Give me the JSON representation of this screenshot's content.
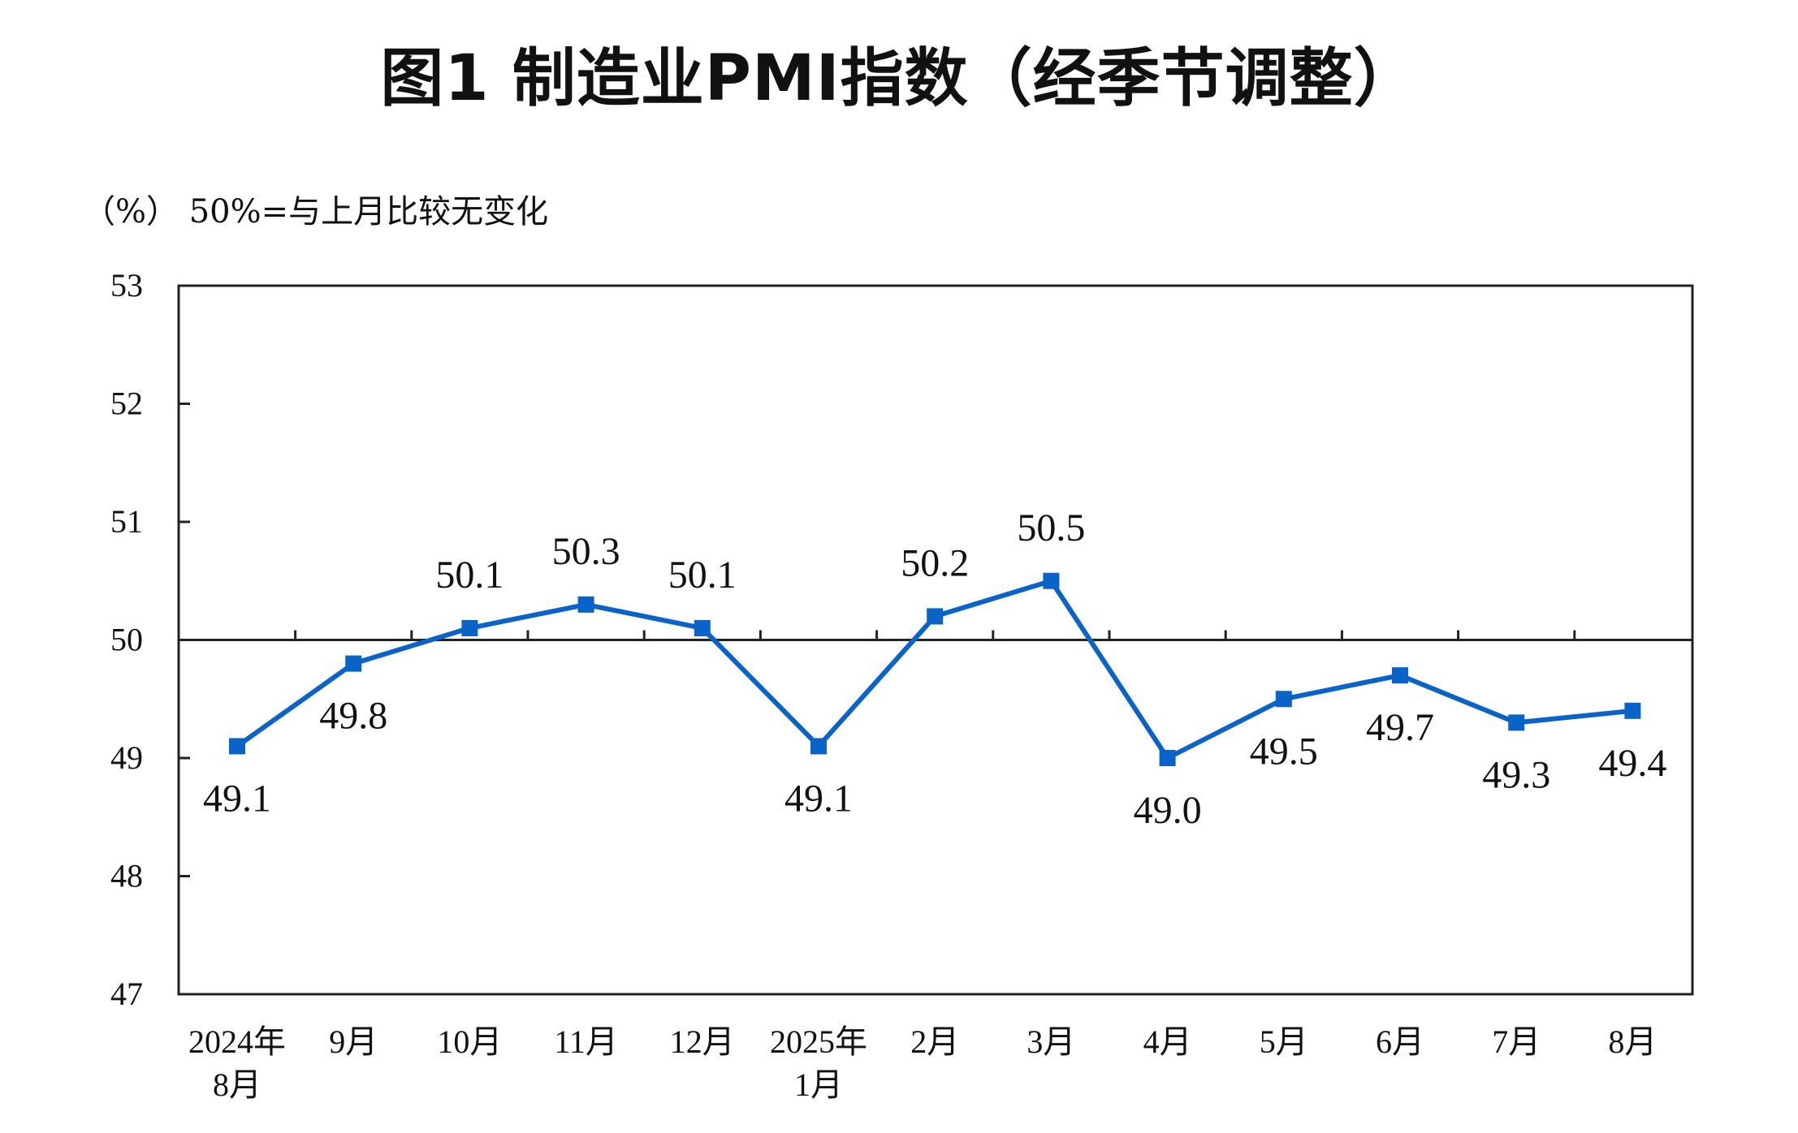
{
  "title": "图1  制造业PMI指数（经季节调整）",
  "unit_note": "（%）  50%=与上月比较无变化",
  "colors": {
    "series": "#0a63c8",
    "axis": "#222222",
    "text": "#111111"
  },
  "chart_data": {
    "type": "line",
    "title": "图1  制造业PMI指数（经季节调整）",
    "ylabel": "（%）",
    "note": "50%=与上月比较无变化",
    "categories": [
      [
        "2024年",
        "8月"
      ],
      [
        "9月"
      ],
      [
        "10月"
      ],
      [
        "11月"
      ],
      [
        "12月"
      ],
      [
        "2025年",
        "1月"
      ],
      [
        "2月"
      ],
      [
        "3月"
      ],
      [
        "4月"
      ],
      [
        "5月"
      ],
      [
        "6月"
      ],
      [
        "7月"
      ],
      [
        "8月"
      ]
    ],
    "series": [
      {
        "values": [
          49.1,
          49.8,
          50.1,
          50.3,
          50.1,
          49.1,
          50.2,
          50.5,
          49.0,
          49.5,
          49.7,
          49.3,
          49.4
        ],
        "labels": [
          "49.1",
          "49.8",
          "50.1",
          "50.3",
          "50.1",
          "49.1",
          "50.2",
          "50.5",
          "49.0",
          "49.5",
          "49.7",
          "49.3",
          "49.4"
        ],
        "label_positions": [
          "below",
          "below",
          "above",
          "above",
          "above",
          "below",
          "above",
          "above",
          "below",
          "below",
          "below",
          "below",
          "below"
        ]
      }
    ],
    "ylim": [
      47,
      53
    ],
    "yticks": [
      "47",
      "48",
      "49",
      "50",
      "51",
      "52",
      "53"
    ],
    "reference_line": 50,
    "grid": false,
    "legend": "none",
    "marker": "square"
  }
}
